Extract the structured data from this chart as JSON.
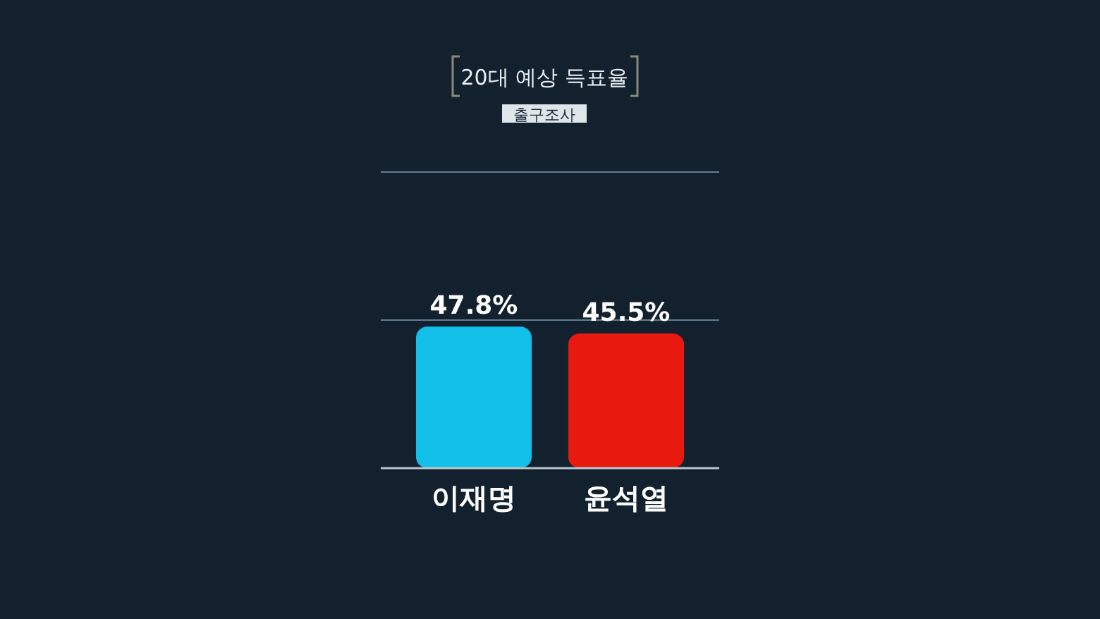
{
  "chart_data": {
    "type": "bar",
    "title": "20대 예상 득표율",
    "subtitle": "출구조사",
    "categories": [
      "이재명",
      "윤석열"
    ],
    "values": [
      47.8,
      45.5
    ],
    "colors": [
      "#12bfe8",
      "#e8190f"
    ],
    "ylim": [
      0,
      100
    ],
    "ref_lines": [
      {
        "axis": "y",
        "value": 50
      },
      {
        "axis": "y",
        "value": 100
      }
    ],
    "tick_labels": "x",
    "value_labels": [
      "47.8%",
      "45.5%"
    ]
  }
}
